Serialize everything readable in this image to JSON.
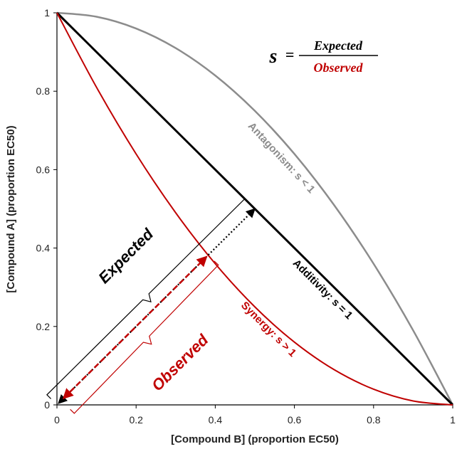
{
  "chart_data": {
    "type": "line",
    "xlabel": "[Compound B] (proportion EC50)",
    "ylabel": "[Compound A] (proportion EC50)",
    "xlim": [
      0,
      1
    ],
    "ylim": [
      0,
      1
    ],
    "x_ticks": [
      "0",
      "0.2",
      "0.4",
      "0.6",
      "0.8",
      "1"
    ],
    "y_ticks": [
      "0",
      "0.2",
      "0.4",
      "0.6",
      "0.8",
      "1"
    ],
    "grid": false,
    "series": [
      {
        "label": "Antagonism: s < 1",
        "color": "#8c8c8c",
        "x": [
          0,
          0.1,
          0.2,
          0.3,
          0.4,
          0.5,
          0.6,
          0.7,
          0.8,
          0.9,
          1
        ],
        "y": [
          1,
          0.99,
          0.96,
          0.91,
          0.84,
          0.75,
          0.64,
          0.51,
          0.36,
          0.19,
          0
        ]
      },
      {
        "label": "Additivity: s = 1",
        "color": "#000000",
        "x": [
          0,
          1
        ],
        "y": [
          1,
          0
        ]
      },
      {
        "label": "Synergy: s > 1",
        "color": "#c00000",
        "x": [
          0,
          0.1,
          0.2,
          0.3,
          0.4,
          0.5,
          0.6,
          0.7,
          0.8,
          0.9,
          1
        ],
        "y": [
          1,
          0.81,
          0.64,
          0.49,
          0.36,
          0.25,
          0.16,
          0.09,
          0.04,
          0.01,
          0
        ]
      }
    ],
    "annotations": {
      "expected_label": "Expected",
      "observed_label": "Observed",
      "formula_s": "s",
      "formula_eq": "=",
      "formula_num": "Expected",
      "formula_den": "Observed",
      "expected_arrow": {
        "from": [
          0,
          0
        ],
        "to": [
          0.5,
          0.5
        ]
      },
      "observed_arrow": {
        "from": [
          0,
          0
        ],
        "to": [
          0.382,
          0.382
        ]
      }
    },
    "colors": {
      "expected": "#000000",
      "observed": "#c00000",
      "antagonism": "#8c8c8c"
    }
  }
}
